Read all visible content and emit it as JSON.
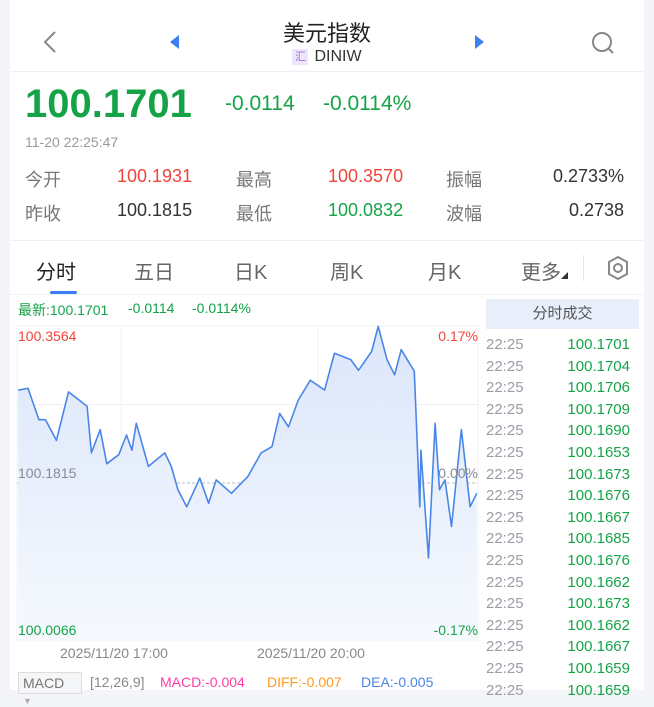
{
  "header": {
    "title": "美元指数",
    "badge": "汇",
    "symbol": "DINIW",
    "icons": [
      "back-chevron-icon",
      "prev-triangle-icon",
      "next-triangle-icon",
      "search-icon"
    ]
  },
  "quote": {
    "price": "100.1701",
    "change": "-0.0114",
    "change_pct": "-0.0114%",
    "timestamp": "11-20 22:25:47",
    "stats": [
      {
        "label": "今开",
        "value": "100.1931",
        "color": "#f0443a"
      },
      {
        "label": "最高",
        "value": "100.3570",
        "color": "#f0443a"
      },
      {
        "label": "振幅",
        "value": "0.2733%",
        "color": "#333333"
      },
      {
        "label": "昨收",
        "value": "100.1815",
        "color": "#333333"
      },
      {
        "label": "最低",
        "value": "100.0832",
        "color": "#14a347"
      },
      {
        "label": "波幅",
        "value": "0.2738",
        "color": "#333333"
      }
    ]
  },
  "tabs": [
    {
      "label": "分时",
      "active": true
    },
    {
      "label": "五日"
    },
    {
      "label": "日K"
    },
    {
      "label": "周K"
    },
    {
      "label": "月K"
    },
    {
      "label": "更多"
    }
  ],
  "chart_info": {
    "latest": "最新:100.1701",
    "change": "-0.0114",
    "change_pct": "-0.0114%"
  },
  "chart_data": {
    "type": "line",
    "color": "#4a86e8",
    "ylim": [
      100.0066,
      100.3564
    ],
    "baseline": 100.1815,
    "y_labels": {
      "top": "100.3564",
      "mid": "100.1815",
      "bottom": "100.0066",
      "top_pct": "0.17%",
      "mid_pct": "0.00%",
      "bottom_pct": "-0.17%"
    },
    "x_tick_labels": [
      "2025/11/20 17:00",
      "2025/11/20 20:00"
    ],
    "x": [
      "15:26",
      "15:35",
      "15:45",
      "15:51",
      "16:01",
      "16:12",
      "16:29",
      "16:33",
      "16:41",
      "16:47",
      "16:58",
      "17:05",
      "17:10",
      "17:14",
      "17:25",
      "17:40",
      "17:46",
      "17:52",
      "18:00",
      "18:12",
      "18:20",
      "18:27",
      "18:41",
      "18:56",
      "19:08",
      "19:18",
      "19:25",
      "19:33",
      "19:42",
      "19:53",
      "20:06",
      "20:15",
      "20:30",
      "20:37",
      "20:49",
      "20:55",
      "21:03",
      "21:10",
      "21:16",
      "21:28",
      "21:33",
      "21:34",
      "21:41",
      "21:47",
      "21:51",
      "21:56",
      "22:02",
      "22:11",
      "22:19",
      "22:25"
    ],
    "y": [
      100.285,
      100.287,
      100.252,
      100.252,
      100.229,
      100.283,
      100.267,
      100.215,
      100.241,
      100.203,
      100.213,
      100.235,
      100.218,
      100.248,
      100.2,
      100.215,
      100.2,
      100.174,
      100.155,
      100.187,
      100.159,
      100.185,
      100.17,
      100.189,
      100.215,
      100.222,
      100.259,
      100.244,
      100.274,
      100.296,
      100.285,
      100.326,
      100.319,
      100.307,
      100.328,
      100.356,
      100.319,
      100.302,
      100.33,
      100.306,
      100.155,
      100.218,
      100.098,
      100.248,
      100.174,
      100.185,
      100.133,
      100.241,
      100.155,
      100.17
    ]
  },
  "trades": {
    "title": "分时成交",
    "rows": [
      [
        "22:25",
        "100.1701"
      ],
      [
        "22:25",
        "100.1704"
      ],
      [
        "22:25",
        "100.1706"
      ],
      [
        "22:25",
        "100.1709"
      ],
      [
        "22:25",
        "100.1690"
      ],
      [
        "22:25",
        "100.1653"
      ],
      [
        "22:25",
        "100.1673"
      ],
      [
        "22:25",
        "100.1676"
      ],
      [
        "22:25",
        "100.1667"
      ],
      [
        "22:25",
        "100.1685"
      ],
      [
        "22:25",
        "100.1676"
      ],
      [
        "22:25",
        "100.1662"
      ],
      [
        "22:25",
        "100.1673"
      ],
      [
        "22:25",
        "100.1662"
      ],
      [
        "22:25",
        "100.1667"
      ],
      [
        "22:25",
        "100.1659"
      ],
      [
        "22:25",
        "100.1659"
      ]
    ]
  },
  "indicator": {
    "name": "MACD",
    "params": "[12,26,9]",
    "macd": "MACD:-0.004",
    "diff": "DIFF:-0.007",
    "dea": "DEA:-0.005",
    "colors": {
      "macd": "#ff3fa4",
      "diff": "#ff9a1f",
      "dea": "#4a86e8"
    }
  }
}
